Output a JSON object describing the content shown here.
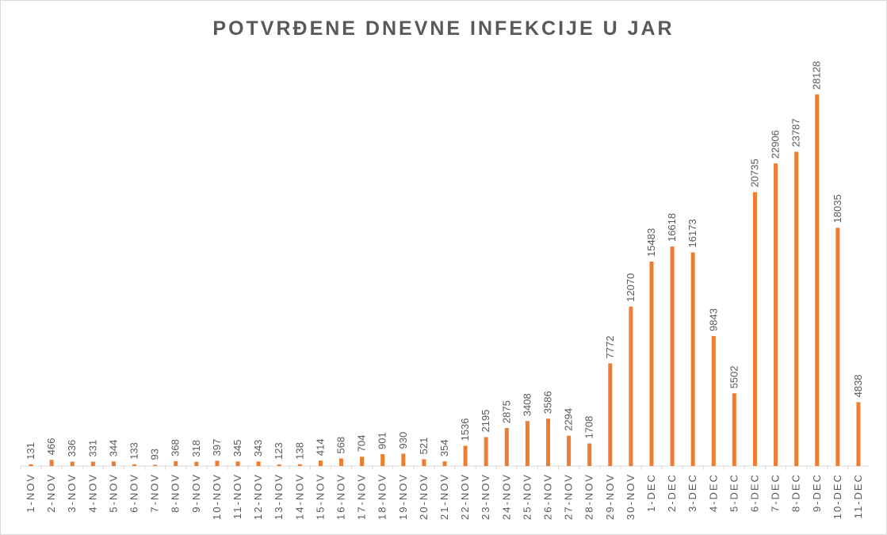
{
  "chart_data": {
    "type": "bar",
    "title": "POTVRĐENE DNEVNE INFEKCIJE U JAR",
    "xlabel": "",
    "ylabel": "",
    "ylim": [
      0,
      30000
    ],
    "grid": false,
    "legend": "none",
    "bar_color": "#ED7D31",
    "categories": [
      "1-NOV",
      "2-NOV",
      "3-NOV",
      "4-NOV",
      "5-NOV",
      "6-NOV",
      "7-NOV",
      "8-NOV",
      "9-NOV",
      "10-NOV",
      "11-NOV",
      "12-NOV",
      "13-NOV",
      "14-NOV",
      "15-NOV",
      "16-NOV",
      "17-NOV",
      "18-NOV",
      "19-NOV",
      "20-NOV",
      "21-NOV",
      "22-NOV",
      "23-NOV",
      "24-NOV",
      "25-NOV",
      "26-NOV",
      "27-NOV",
      "28-NOV",
      "29-NOV",
      "30-NOV",
      "1-DEC",
      "2-DEC",
      "3-DEC",
      "4-DEC",
      "5-DEC",
      "6-DEC",
      "7-DEC",
      "8-DEC",
      "9-DEC",
      "10-DEC",
      "11-DEC"
    ],
    "values": [
      131,
      466,
      336,
      331,
      344,
      133,
      93,
      368,
      318,
      397,
      345,
      343,
      123,
      138,
      414,
      568,
      704,
      901,
      930,
      521,
      354,
      1536,
      2195,
      2875,
      3408,
      3586,
      2294,
      1708,
      7772,
      12070,
      15483,
      16618,
      16173,
      9843,
      5502,
      20735,
      22906,
      23787,
      28128,
      18035,
      4838
    ]
  }
}
